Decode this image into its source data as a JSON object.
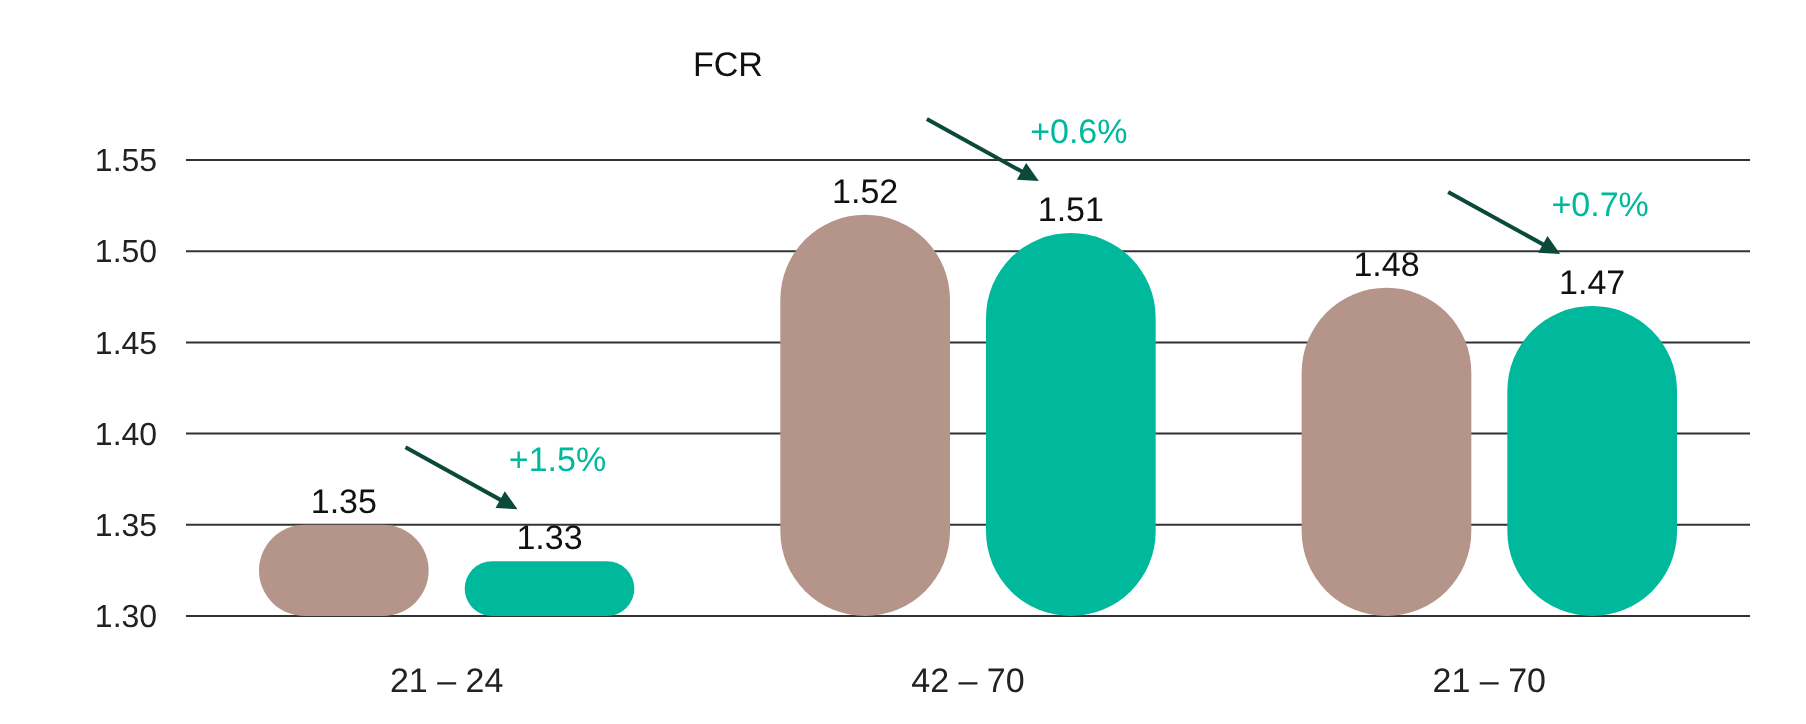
{
  "chart_data": {
    "type": "bar",
    "title": "FCR",
    "categories": [
      "21 – 24",
      "42 – 70",
      "21 – 70"
    ],
    "series": [
      {
        "color": "#b5958a",
        "values": [
          1.35,
          1.52,
          1.48
        ]
      },
      {
        "color": "#00b89c",
        "values": [
          1.33,
          1.51,
          1.47
        ]
      }
    ],
    "ylim": [
      1.3,
      1.55
    ],
    "yticks": [
      {
        "value": 1.3,
        "label": "1.30"
      },
      {
        "value": 1.35,
        "label": "1.35"
      },
      {
        "value": 1.4,
        "label": "1.40"
      },
      {
        "value": 1.45,
        "label": "1.45"
      },
      {
        "value": 1.5,
        "label": "1.50"
      },
      {
        "value": 1.55,
        "label": "1.55"
      }
    ],
    "grid": "y",
    "data_labels": true,
    "annotations": [
      "+1.5%",
      "+0.6%",
      "+0.7%"
    ]
  }
}
